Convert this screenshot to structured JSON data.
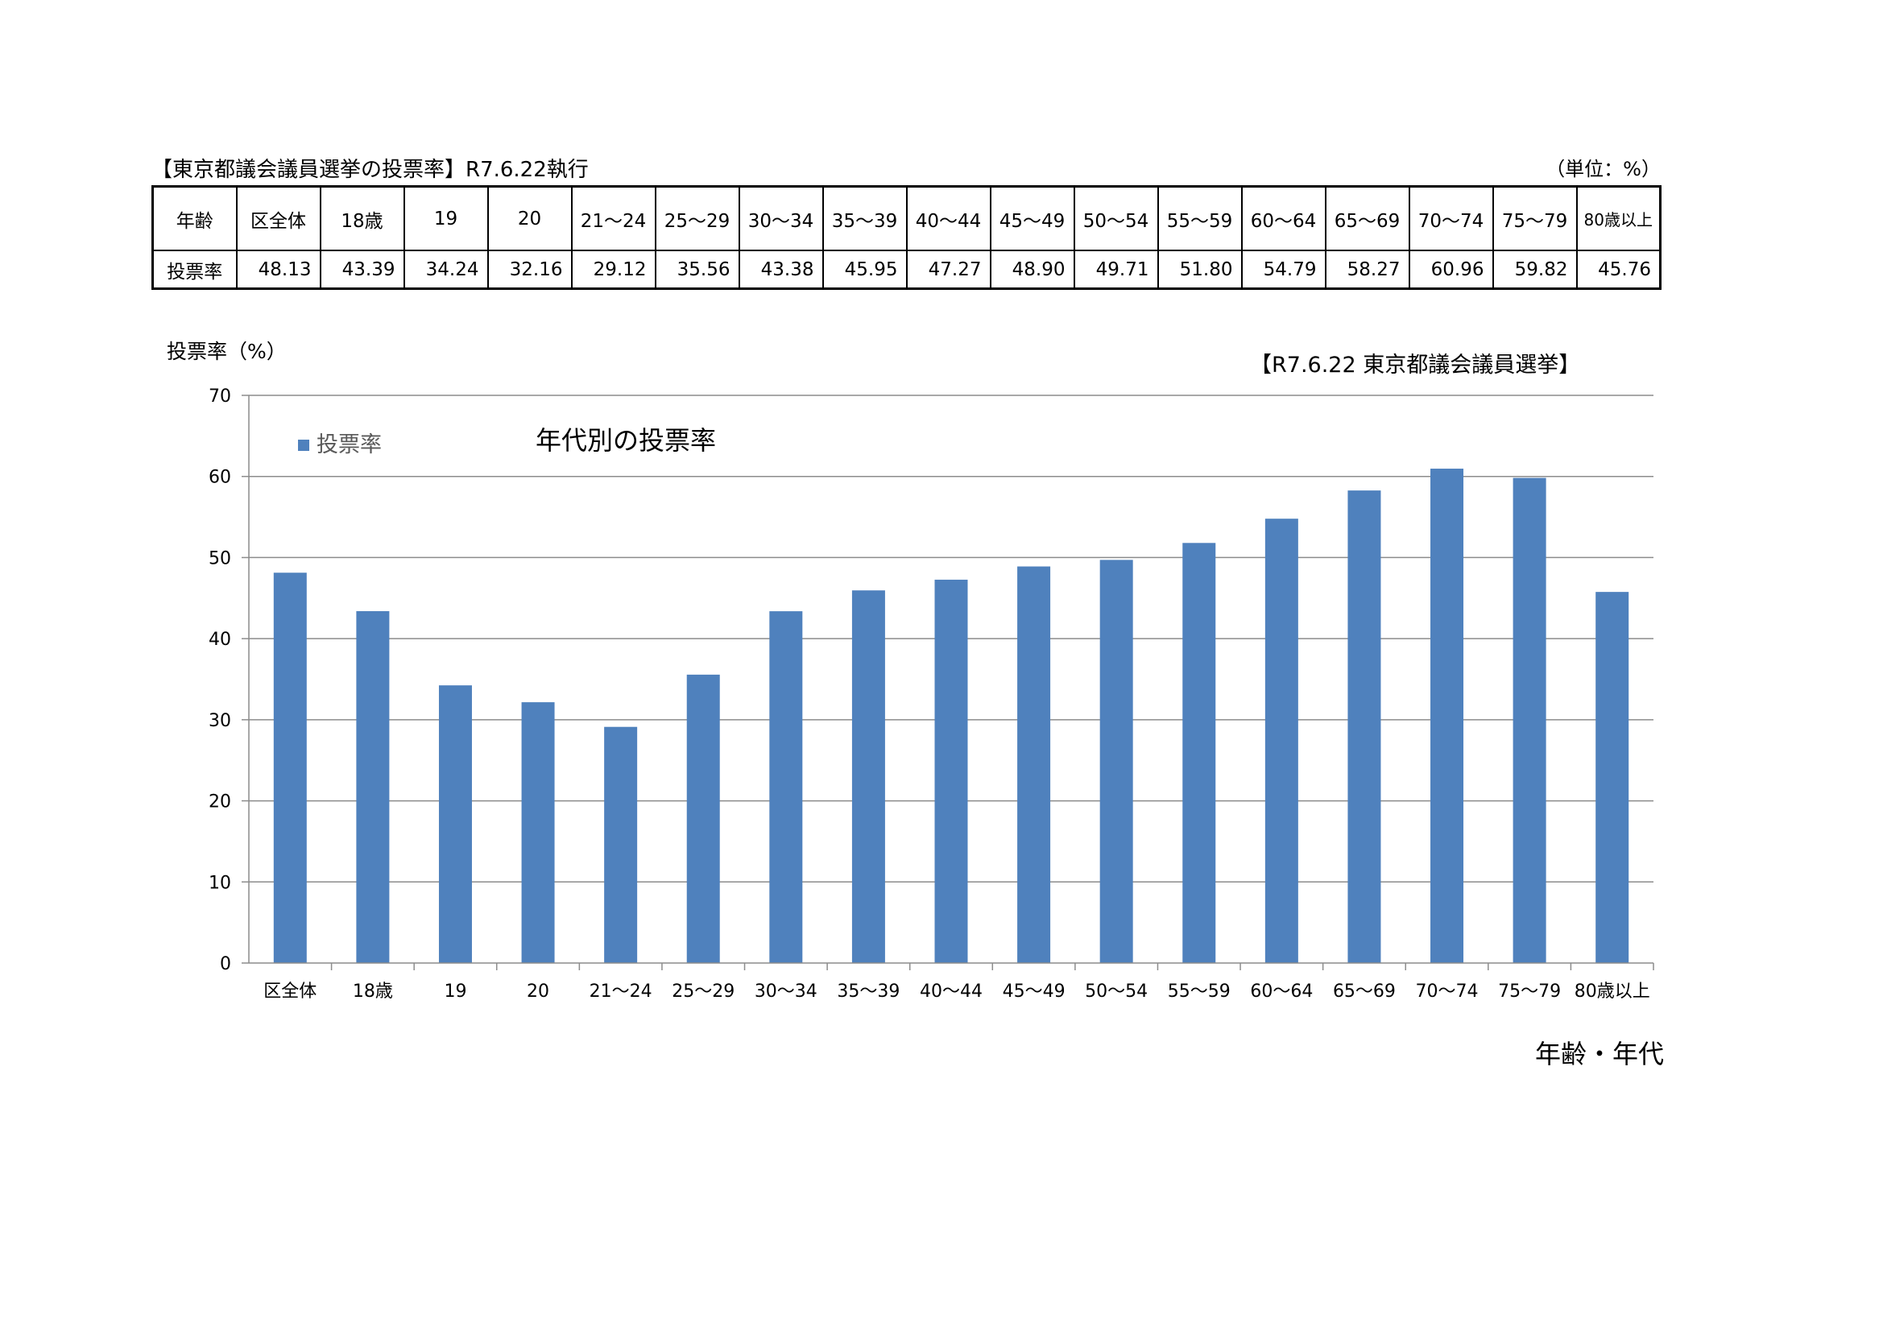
{
  "table": {
    "title": "【東京都議会議員選挙の投票率】R7.6.22執行",
    "unit": "（単位：%）",
    "row_header_age": "年齢",
    "row_header_rate": "投票率",
    "columns": [
      "区全体",
      "18歳",
      "19",
      "20",
      "21～24",
      "25～29",
      "30～34",
      "35～39",
      "40～44",
      "45～49",
      "50～54",
      "55～59",
      "60～64",
      "65～69",
      "70～74",
      "75～79",
      "80歳以上"
    ],
    "values": [
      "48.13",
      "43.39",
      "34.24",
      "32.16",
      "29.12",
      "35.56",
      "43.38",
      "45.95",
      "47.27",
      "48.90",
      "49.71",
      "51.80",
      "54.79",
      "58.27",
      "60.96",
      "59.82",
      "45.76"
    ]
  },
  "chart_data": {
    "type": "bar",
    "title": "年代別の投票率",
    "subtitle": "【R7.6.22 東京都議会議員選挙】",
    "ylabel": "投票率（%）",
    "xlabel": "年齢・年代",
    "ylim": [
      0,
      70
    ],
    "yticks": [
      0,
      10,
      20,
      30,
      40,
      50,
      60,
      70
    ],
    "grid": true,
    "legend_position": "top-left",
    "categories": [
      "区全体",
      "18歳",
      "19",
      "20",
      "21～24",
      "25～29",
      "30～34",
      "35～39",
      "40～44",
      "45～49",
      "50～54",
      "55～59",
      "60～64",
      "65～69",
      "70～74",
      "75～79",
      "80歳以上"
    ],
    "series": [
      {
        "name": "投票率",
        "color": "#4f81bd",
        "values": [
          48.13,
          43.39,
          34.24,
          32.16,
          29.12,
          35.56,
          43.38,
          45.95,
          47.27,
          48.9,
          49.71,
          51.8,
          54.79,
          58.27,
          60.96,
          59.82,
          45.76
        ]
      }
    ]
  }
}
